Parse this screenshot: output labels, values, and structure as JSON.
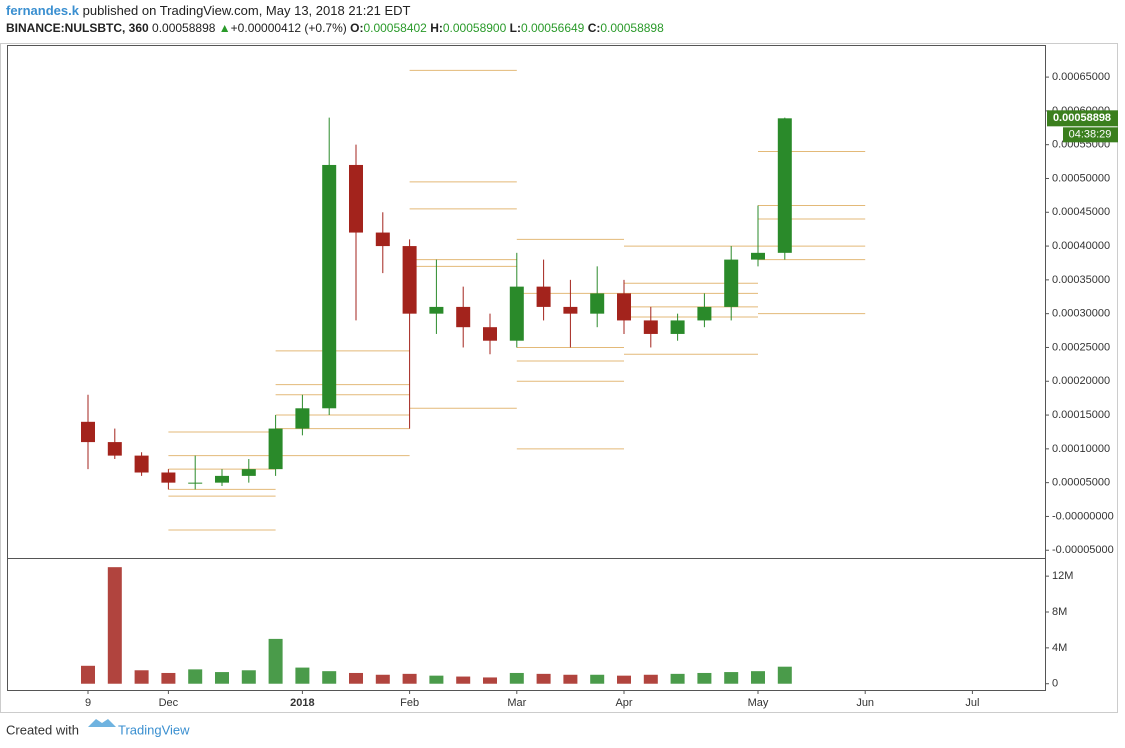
{
  "header": {
    "author": "fernandes.k",
    "published": "published on TradingView.com, May 13, 2018 21:21 EDT",
    "symbol": "BINANCE:NULSBTC, 360",
    "last": "0.00058898",
    "change": "+0.00000412 (+0.7%)",
    "open_label": "O:",
    "open": "0.00058402",
    "high_label": "H:",
    "high": "0.00058900",
    "low_label": "L:",
    "low": "0.00056649",
    "close_label": "C:",
    "close": "0.00058898"
  },
  "chart_data": {
    "type": "candlestick",
    "categories": [
      "9",
      null,
      null,
      "Dec",
      null,
      null,
      null,
      null,
      "2018",
      null,
      null,
      null,
      "Feb",
      null,
      null,
      null,
      "Mar",
      null,
      null,
      null,
      "Apr",
      null,
      null,
      null,
      null,
      "May",
      null,
      null,
      null,
      "Jun",
      null,
      null,
      null,
      "Jul",
      null,
      null
    ],
    "open": [
      0.00014,
      0.00011,
      9e-05,
      6.5e-05,
      5e-05,
      5e-05,
      6e-05,
      7e-05,
      0.00013,
      0.00016,
      0.00052,
      0.00042,
      0.0004,
      0.0003,
      0.00031,
      0.00028,
      0.00026,
      0.00034,
      0.00031,
      0.0003,
      0.00033,
      0.00029,
      0.00027,
      0.00029,
      0.00031,
      0.00038,
      0.00039,
      null,
      null,
      null,
      null,
      null,
      null,
      null,
      null,
      null
    ],
    "high": [
      0.00018,
      0.00013,
      9.5e-05,
      7e-05,
      9e-05,
      7e-05,
      8.5e-05,
      0.00015,
      0.00018,
      0.00059,
      0.00055,
      0.00045,
      0.00041,
      0.00038,
      0.00034,
      0.0003,
      0.00039,
      0.00038,
      0.00035,
      0.00037,
      0.00035,
      0.00031,
      0.0003,
      0.00033,
      0.0004,
      0.00046,
      0.00059,
      null,
      null,
      null,
      null,
      null,
      null,
      null,
      null,
      null
    ],
    "low": [
      7e-05,
      8.5e-05,
      6e-05,
      4e-05,
      4e-05,
      4.5e-05,
      5e-05,
      6e-05,
      0.00012,
      0.00015,
      0.00029,
      0.00036,
      0.00013,
      0.00027,
      0.00025,
      0.00024,
      0.00025,
      0.00029,
      0.00025,
      0.00028,
      0.00027,
      0.00025,
      0.00026,
      0.00028,
      0.00029,
      0.00037,
      0.00038,
      null,
      null,
      null,
      null,
      null,
      null,
      null,
      null,
      null
    ],
    "close": [
      0.00011,
      9e-05,
      6.5e-05,
      5e-05,
      5e-05,
      6e-05,
      7e-05,
      0.00013,
      0.00016,
      0.00052,
      0.00042,
      0.0004,
      0.0003,
      0.00031,
      0.00028,
      0.00026,
      0.00034,
      0.00031,
      0.0003,
      0.00033,
      0.00029,
      0.00027,
      0.00029,
      0.00031,
      0.00038,
      0.00039,
      0.000589,
      null,
      null,
      null,
      null,
      null,
      null,
      null,
      null,
      null
    ],
    "up_color": "#2a8a2a",
    "down_color": "#a3231c",
    "level_color": "#e3b978",
    "ylim": [
      -6e-05,
      0.000696
    ],
    "yticks": [
      {
        "value": -5e-05,
        "label": "-0.00005000"
      },
      {
        "value": 0,
        "label": "-0.00000000"
      },
      {
        "value": 5e-05,
        "label": "0.00005000"
      },
      {
        "value": 0.0001,
        "label": "0.00010000"
      },
      {
        "value": 0.00015,
        "label": "0.00015000"
      },
      {
        "value": 0.0002,
        "label": "0.00020000"
      },
      {
        "value": 0.00025,
        "label": "0.00025000"
      },
      {
        "value": 0.0003,
        "label": "0.00030000"
      },
      {
        "value": 0.00035,
        "label": "0.00035000"
      },
      {
        "value": 0.0004,
        "label": "0.00040000"
      },
      {
        "value": 0.00045,
        "label": "0.00045000"
      },
      {
        "value": 0.0005,
        "label": "0.00050000"
      },
      {
        "value": 0.00055,
        "label": "0.00055000"
      },
      {
        "value": 0.0006,
        "label": "0.00060000"
      },
      {
        "value": 0.00065,
        "label": "0.00065000"
      }
    ],
    "levels": [
      {
        "start": 3,
        "end": 7,
        "values": [
          0.000125,
          9e-05,
          7e-05,
          4e-05,
          3e-05,
          -2e-05
        ]
      },
      {
        "start": 7,
        "end": 12,
        "values": [
          0.000245,
          0.000195,
          0.00018,
          0.00015,
          0.00013,
          9e-05
        ]
      },
      {
        "start": 12,
        "end": 16,
        "values": [
          0.00066,
          0.000495,
          0.000455,
          0.00038,
          0.00037,
          0.00016
        ]
      },
      {
        "start": 16,
        "end": 20,
        "values": [
          0.00041,
          0.00033,
          0.00025,
          0.00023,
          0.0002,
          0.0001
        ]
      },
      {
        "start": 20,
        "end": 25,
        "values": [
          0.0004,
          0.000345,
          0.00033,
          0.00031,
          0.000295,
          0.00024
        ]
      },
      {
        "start": 25,
        "end": 29,
        "values": [
          0.00054,
          0.00046,
          0.00044,
          0.0004,
          0.00038,
          0.0003
        ]
      }
    ],
    "price_tag": "0.00058898",
    "countdown": "04:38:29",
    "volume": {
      "values": [
        2000000,
        13000000,
        1500000,
        1200000,
        1600000,
        1300000,
        1500000,
        5000000,
        1800000,
        1400000,
        1200000,
        1000000,
        1100000,
        900000,
        800000,
        700000,
        1200000,
        1100000,
        1000000,
        1000000,
        900000,
        1000000,
        1100000,
        1200000,
        1300000,
        1400000,
        1900000,
        null,
        null,
        null,
        null,
        null,
        null,
        null,
        null,
        null
      ],
      "ylim": [
        -700000,
        13800000
      ],
      "yticks": [
        0,
        {
          "value": 4000000,
          "label": "4M"
        },
        {
          "value": 8000000,
          "label": "8M"
        },
        {
          "value": 12000000,
          "label": "12M"
        }
      ]
    }
  },
  "footer": {
    "created": "Created with",
    "brand": "TradingView"
  }
}
